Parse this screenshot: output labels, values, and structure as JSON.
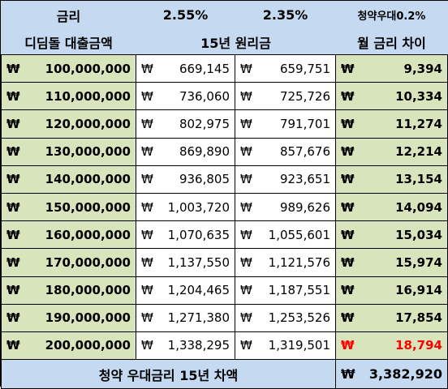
{
  "header": {
    "rate_label": "금리",
    "rate_a": "2.55%",
    "rate_b": "2.35%",
    "discount_label": "청약우대0.2%",
    "loan_label": "디딤돌 대출금액",
    "term_label": "15년 원리금",
    "diff_label": "월 금리 차이"
  },
  "currency_symbol": "₩",
  "rows": [
    {
      "loan": "100,000,000",
      "pay_a": "669,145",
      "pay_b": "659,751",
      "diff": "9,394"
    },
    {
      "loan": "110,000,000",
      "pay_a": "736,060",
      "pay_b": "725,726",
      "diff": "10,334"
    },
    {
      "loan": "120,000,000",
      "pay_a": "802,975",
      "pay_b": "791,701",
      "diff": "11,274"
    },
    {
      "loan": "130,000,000",
      "pay_a": "869,890",
      "pay_b": "857,676",
      "diff": "12,214"
    },
    {
      "loan": "140,000,000",
      "pay_a": "936,805",
      "pay_b": "923,651",
      "diff": "13,154"
    },
    {
      "loan": "150,000,000",
      "pay_a": "1,003,720",
      "pay_b": "989,626",
      "diff": "14,094"
    },
    {
      "loan": "160,000,000",
      "pay_a": "1,070,635",
      "pay_b": "1,055,601",
      "diff": "15,034"
    },
    {
      "loan": "170,000,000",
      "pay_a": "1,137,550",
      "pay_b": "1,121,576",
      "diff": "15,974"
    },
    {
      "loan": "180,000,000",
      "pay_a": "1,204,465",
      "pay_b": "1,187,551",
      "diff": "16,914"
    },
    {
      "loan": "190,000,000",
      "pay_a": "1,271,380",
      "pay_b": "1,253,526",
      "diff": "17,854"
    },
    {
      "loan": "200,000,000",
      "pay_a": "1,338,295",
      "pay_b": "1,319,501",
      "diff": "18,794",
      "highlight": true
    }
  ],
  "footer": {
    "label": "청약 우대금리 15년 차액",
    "total": "3,382,920"
  },
  "colors": {
    "header_bg": "#c5d9f1",
    "amount_bg": "#d8e4bc",
    "highlight_text": "#ff0000"
  }
}
